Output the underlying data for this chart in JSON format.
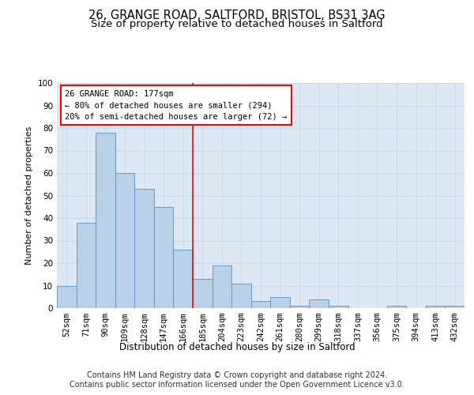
{
  "title1": "26, GRANGE ROAD, SALTFORD, BRISTOL, BS31 3AG",
  "title2": "Size of property relative to detached houses in Saltford",
  "xlabel": "Distribution of detached houses by size in Saltford",
  "ylabel": "Number of detached properties",
  "categories": [
    "52sqm",
    "71sqm",
    "90sqm",
    "109sqm",
    "128sqm",
    "147sqm",
    "166sqm",
    "185sqm",
    "204sqm",
    "223sqm",
    "242sqm",
    "261sqm",
    "280sqm",
    "299sqm",
    "318sqm",
    "337sqm",
    "356sqm",
    "375sqm",
    "394sqm",
    "413sqm",
    "432sqm"
  ],
  "values": [
    10,
    38,
    78,
    60,
    53,
    45,
    26,
    13,
    19,
    11,
    3,
    5,
    1,
    4,
    1,
    0,
    0,
    1,
    0,
    1,
    1
  ],
  "bar_color": "#b8d0e8",
  "bar_edge_color": "#6699cc",
  "grid_color": "#ccdaeb",
  "background_color": "#dde8f4",
  "annotation_text": "26 GRANGE ROAD: 177sqm\n← 80% of detached houses are smaller (294)\n20% of semi-detached houses are larger (72) →",
  "footer1": "Contains HM Land Registry data © Crown copyright and database right 2024.",
  "footer2": "Contains public sector information licensed under the Open Government Licence v3.0.",
  "ylim": [
    0,
    100
  ],
  "yticks": [
    0,
    10,
    20,
    30,
    40,
    50,
    60,
    70,
    80,
    90,
    100
  ],
  "title1_fontsize": 10.5,
  "title2_fontsize": 9.5,
  "xlabel_fontsize": 8.5,
  "ylabel_fontsize": 8,
  "tick_fontsize": 7.5,
  "annotation_fontsize": 7.5,
  "footer_fontsize": 7
}
